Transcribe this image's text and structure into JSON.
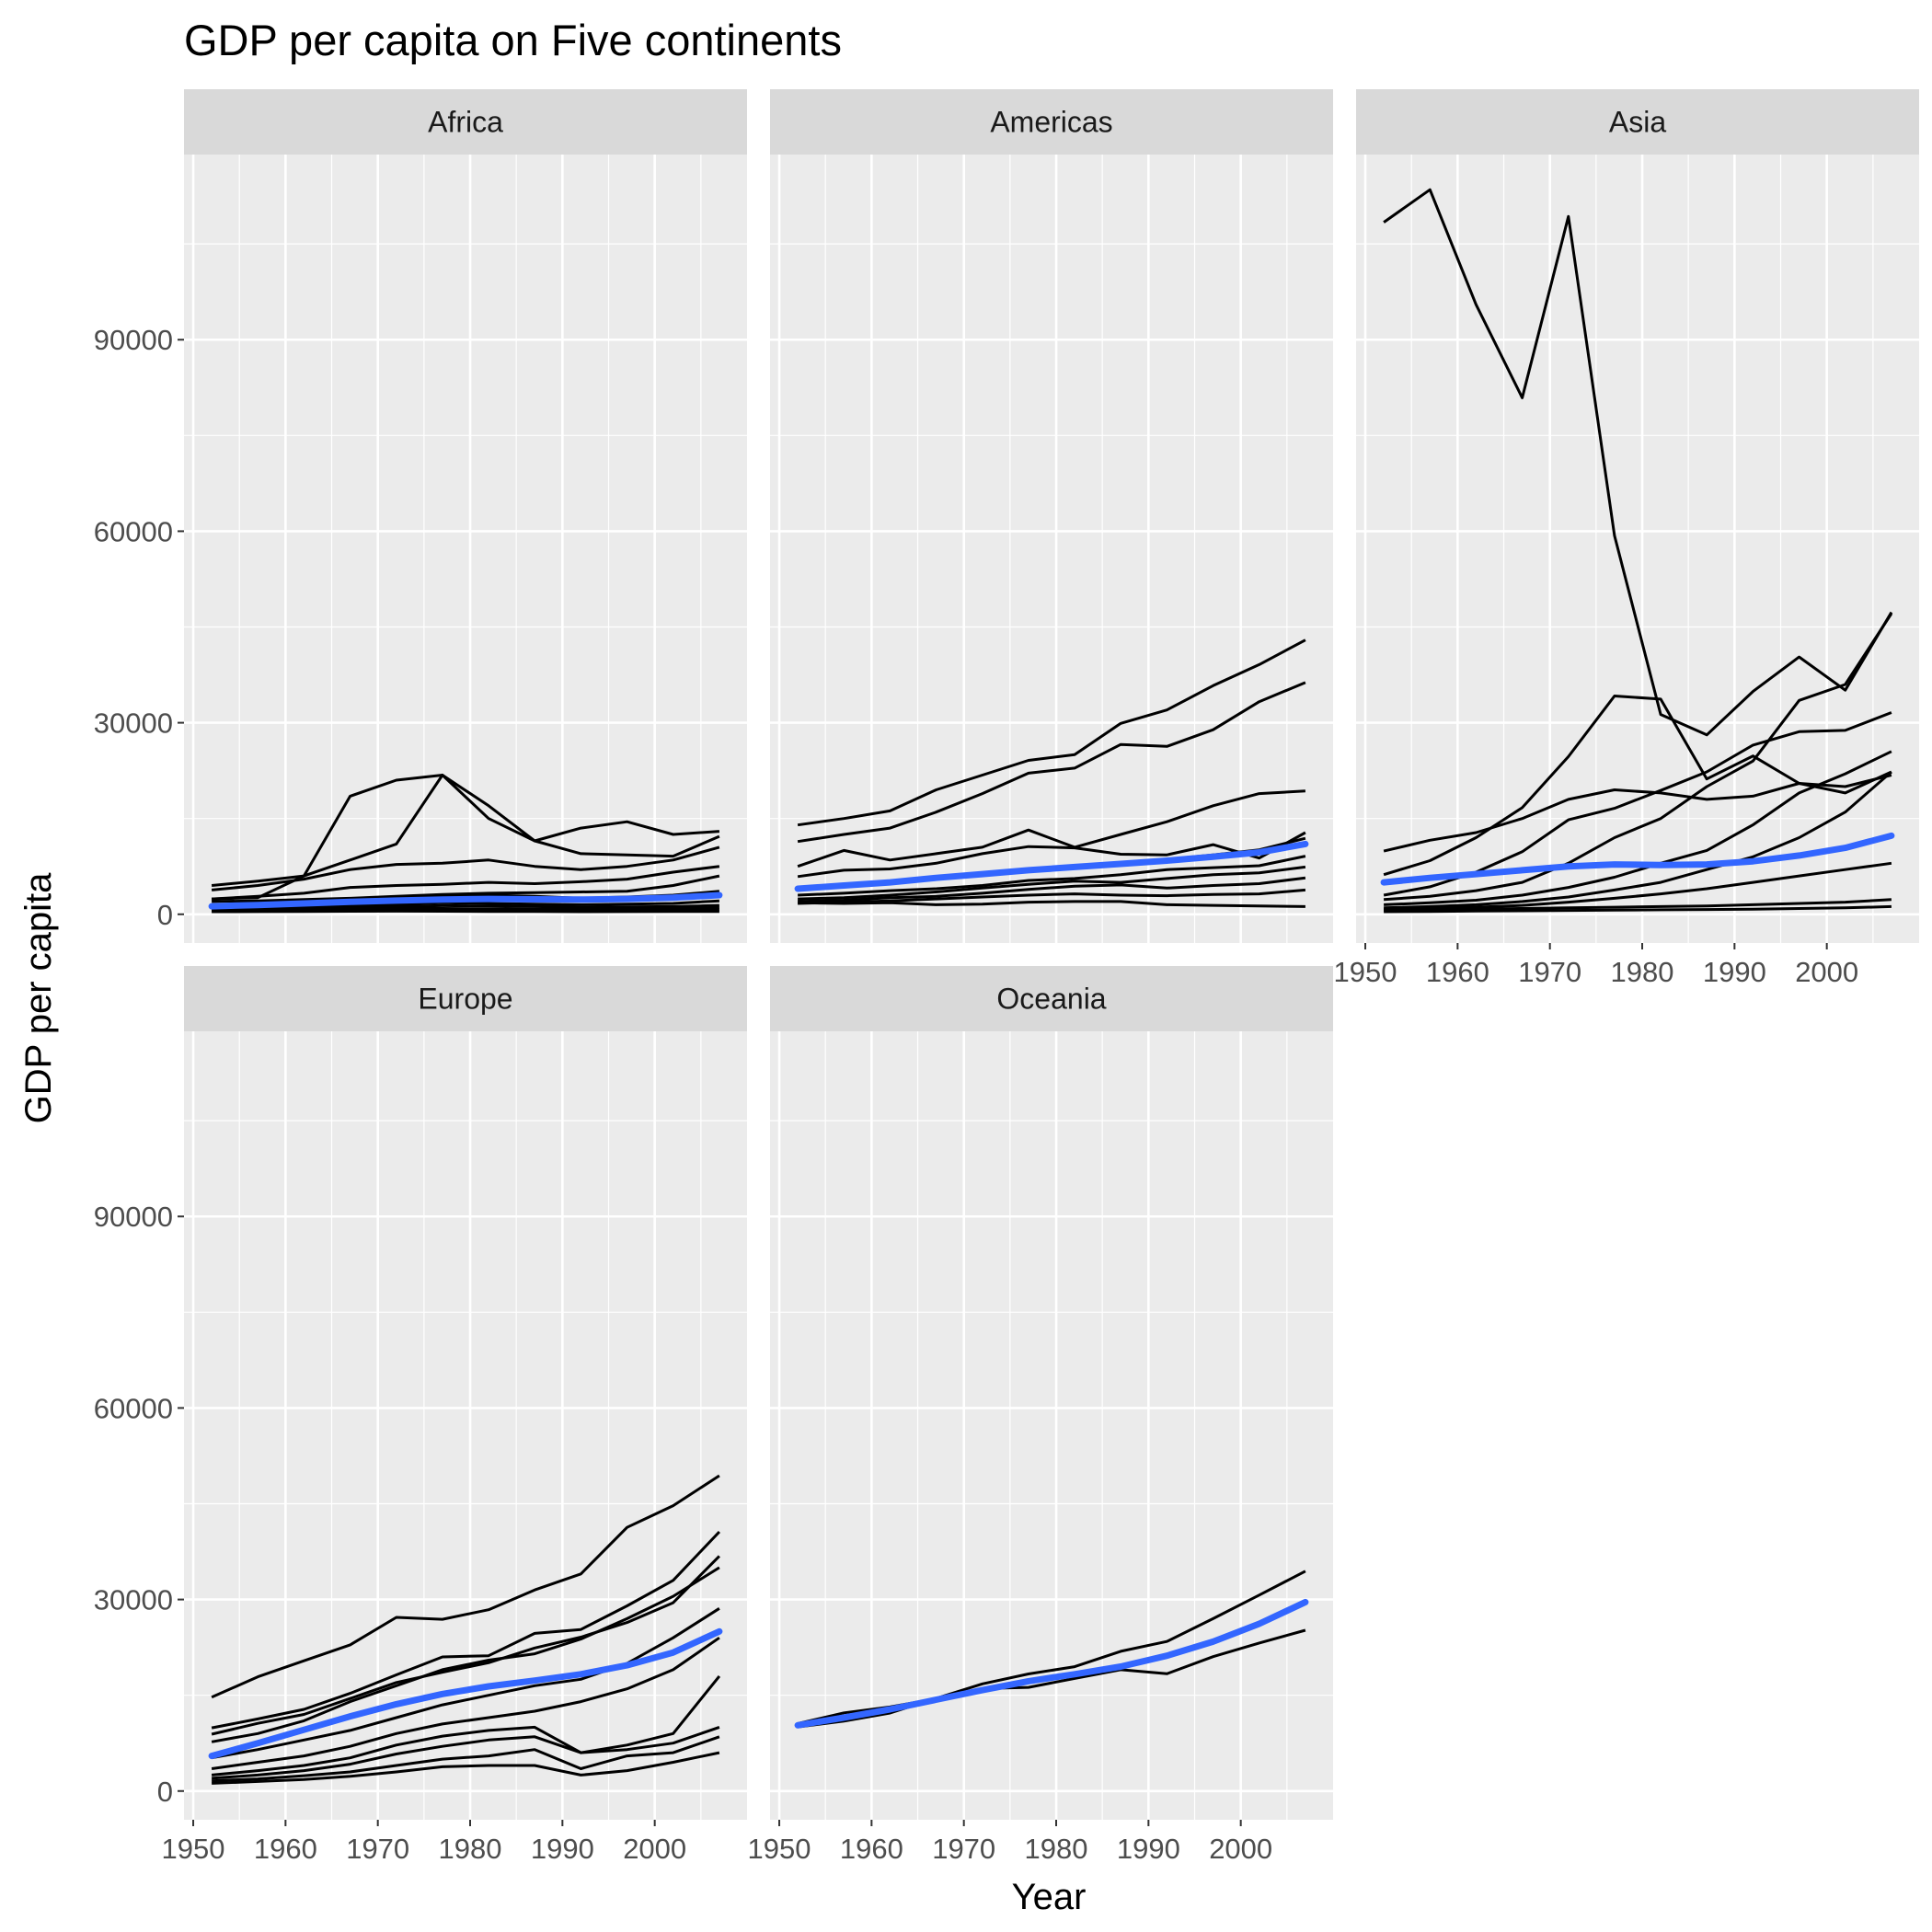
{
  "chart_data": {
    "type": "line",
    "title": "GDP per capita on Five continents",
    "xlabel": "Year",
    "ylabel": "GDP per capita",
    "xlim": [
      1949,
      2010
    ],
    "ylim": [
      -4500,
      119000
    ],
    "x_ticks": [
      1950,
      1960,
      1970,
      1980,
      1990,
      2000
    ],
    "y_ticks": [
      0,
      30000,
      60000,
      90000
    ],
    "x": [
      1952,
      1957,
      1962,
      1967,
      1972,
      1977,
      1982,
      1987,
      1992,
      1997,
      2002,
      2007
    ],
    "colors": {
      "line": "#000000",
      "trend": "#3366ff",
      "panel": "#ebebeb",
      "strip": "#d9d9d9",
      "grid": "#ffffff"
    },
    "panels": [
      {
        "name": "Africa",
        "trend": [
          1250,
          1450,
          1700,
          1950,
          2150,
          2300,
          2400,
          2350,
          2300,
          2400,
          2600,
          3000
        ],
        "series": [
          [
            2400,
            2600,
            6000,
            18500,
            21000,
            21800,
            17000,
            11500,
            13500,
            14500,
            12500,
            13000
          ],
          [
            4500,
            5200,
            6000,
            8500,
            11000,
            21800,
            15000,
            11500,
            9500,
            9300,
            9100,
            12200
          ],
          [
            3800,
            4500,
            5500,
            7000,
            7800,
            8000,
            8500,
            7500,
            7000,
            7500,
            8500,
            10500
          ],
          [
            2400,
            2800,
            3300,
            4200,
            4500,
            4700,
            5000,
            4800,
            5100,
            5500,
            6600,
            7500
          ],
          [
            2000,
            2100,
            2300,
            2500,
            2800,
            3100,
            3300,
            3400,
            3500,
            3600,
            4500,
            6000
          ],
          [
            1500,
            1700,
            1900,
            2200,
            2600,
            3000,
            3000,
            2800,
            2500,
            2700,
            3000,
            3600
          ],
          [
            1100,
            1250,
            1300,
            1400,
            1600,
            1800,
            1700,
            1600,
            1500,
            1600,
            1700,
            2100
          ],
          [
            900,
            1000,
            1050,
            1100,
            1250,
            1350,
            1300,
            1200,
            1100,
            1150,
            1200,
            1400
          ],
          [
            700,
            750,
            800,
            850,
            900,
            900,
            850,
            800,
            750,
            800,
            850,
            1000
          ],
          [
            500,
            550,
            600,
            650,
            700,
            700,
            650,
            600,
            550,
            600,
            620,
            700
          ],
          [
            400,
            420,
            450,
            470,
            480,
            470,
            450,
            430,
            400,
            420,
            430,
            450
          ]
        ]
      },
      {
        "name": "Americas",
        "trend": [
          4000,
          4500,
          5000,
          5700,
          6300,
          6900,
          7400,
          7900,
          8400,
          9000,
          9700,
          11000
        ],
        "series": [
          [
            13990,
            15000,
            16200,
            19500,
            21800,
            24100,
            25000,
            29900,
            32000,
            35800,
            39100,
            42950
          ],
          [
            11400,
            12500,
            13500,
            16000,
            18900,
            22100,
            22900,
            26600,
            26300,
            28900,
            33300,
            36300
          ],
          [
            7500,
            10000,
            8500,
            9500,
            10500,
            13200,
            10500,
            12500,
            14500,
            17000,
            18900,
            19300
          ],
          [
            5900,
            6900,
            7100,
            8000,
            9500,
            10600,
            10400,
            9400,
            9300,
            10900,
            8800,
            12800
          ],
          [
            4000,
            4700,
            5200,
            5900,
            6300,
            6900,
            7600,
            8000,
            8600,
            9300,
            10100,
            11900
          ],
          [
            3000,
            3300,
            3700,
            4000,
            4500,
            5300,
            5600,
            6200,
            7000,
            7300,
            7600,
            9100
          ],
          [
            2400,
            2600,
            3000,
            3500,
            4100,
            4700,
            5200,
            5000,
            5600,
            6200,
            6500,
            7400
          ],
          [
            2000,
            2200,
            2600,
            2800,
            3300,
            3900,
            4400,
            4600,
            4100,
            4500,
            4800,
            5700
          ],
          [
            1700,
            1900,
            2100,
            2400,
            2700,
            3000,
            3200,
            3000,
            2900,
            3100,
            3200,
            3800
          ],
          [
            1800,
            1700,
            1800,
            1500,
            1600,
            1900,
            2000,
            2000,
            1500,
            1400,
            1300,
            1200
          ]
        ]
      },
      {
        "name": "Asia",
        "trend": [
          5000,
          5700,
          6300,
          6900,
          7500,
          7800,
          7700,
          7800,
          8300,
          9200,
          10400,
          12300
        ],
        "series": [
          [
            108400,
            113500,
            95500,
            80900,
            109300,
            59300,
            31300,
            28100,
            34900,
            40300,
            35100,
            47300
          ],
          [
            9900,
            11600,
            12800,
            15000,
            18000,
            19500,
            19000,
            18000,
            18500,
            20500,
            20000,
            21800
          ],
          [
            6200,
            8400,
            12000,
            16700,
            24700,
            34200,
            33700,
            21200,
            24800,
            20500,
            19000,
            22300
          ],
          [
            3000,
            4300,
            6600,
            9800,
            14800,
            16600,
            19400,
            22300,
            26500,
            28600,
            28800,
            31600
          ],
          [
            2300,
            2800,
            3700,
            5000,
            8000,
            12000,
            15000,
            20000,
            24000,
            33500,
            36000,
            47100
          ],
          [
            1500,
            1800,
            2200,
            3000,
            4200,
            5800,
            8000,
            10000,
            14000,
            19000,
            22000,
            25500
          ],
          [
            1000,
            1200,
            1500,
            2000,
            2700,
            3800,
            5000,
            7000,
            9000,
            12000,
            16000,
            22300
          ],
          [
            800,
            900,
            1100,
            1400,
            1900,
            2500,
            3200,
            4000,
            5000,
            6000,
            7000,
            8000
          ],
          [
            600,
            700,
            800,
            900,
            1000,
            1100,
            1200,
            1300,
            1500,
            1700,
            1900,
            2300
          ],
          [
            400,
            450,
            500,
            550,
            600,
            650,
            700,
            750,
            800,
            900,
            1000,
            1200
          ]
        ]
      },
      {
        "name": "Europe",
        "trend": [
          5500,
          7500,
          9600,
          11700,
          13600,
          15200,
          16400,
          17300,
          18300,
          19700,
          21700,
          25000
        ],
        "series": [
          [
            14700,
            17900,
            20400,
            22900,
            27200,
            26900,
            28400,
            31500,
            34000,
            41300,
            44700,
            49400
          ],
          [
            9900,
            11300,
            12800,
            15300,
            18200,
            21000,
            21200,
            24700,
            25300,
            29000,
            33000,
            40600
          ],
          [
            8900,
            10600,
            12000,
            14500,
            17000,
            18600,
            20100,
            22400,
            24100,
            26400,
            29500,
            36800
          ],
          [
            7700,
            9000,
            11000,
            14000,
            16500,
            19000,
            20500,
            21500,
            23800,
            27000,
            30500,
            35000
          ],
          [
            5200,
            6500,
            8000,
            9500,
            11500,
            13500,
            15000,
            16500,
            17500,
            20000,
            24000,
            28600
          ],
          [
            3500,
            4500,
            5500,
            7000,
            9000,
            10500,
            11500,
            12500,
            14000,
            16000,
            19000,
            24000
          ],
          [
            2500,
            3200,
            4000,
            5200,
            7200,
            8600,
            9500,
            10000,
            6000,
            7200,
            9000,
            18000
          ],
          [
            2000,
            2500,
            3200,
            4200,
            5800,
            7000,
            8000,
            8500,
            6000,
            6500,
            7500,
            10000
          ],
          [
            1600,
            1900,
            2400,
            3000,
            4000,
            5000,
            5500,
            6500,
            3500,
            5500,
            6000,
            8500
          ],
          [
            1200,
            1500,
            1800,
            2300,
            3000,
            3800,
            4000,
            4000,
            2500,
            3200,
            4500,
            6000
          ]
        ]
      },
      {
        "name": "Oceania",
        "trend": [
          10300,
          11500,
          12800,
          14300,
          15800,
          17200,
          18300,
          19500,
          21200,
          23400,
          26200,
          29600
        ],
        "series": [
          [
            10040,
            10950,
            12217,
            14526,
            16789,
            18334,
            19477,
            21889,
            23425,
            26998,
            30688,
            34435
          ],
          [
            10557,
            12247,
            13176,
            14464,
            16046,
            16234,
            17632,
            19007,
            18363,
            21050,
            23190,
            25185
          ]
        ]
      }
    ]
  }
}
